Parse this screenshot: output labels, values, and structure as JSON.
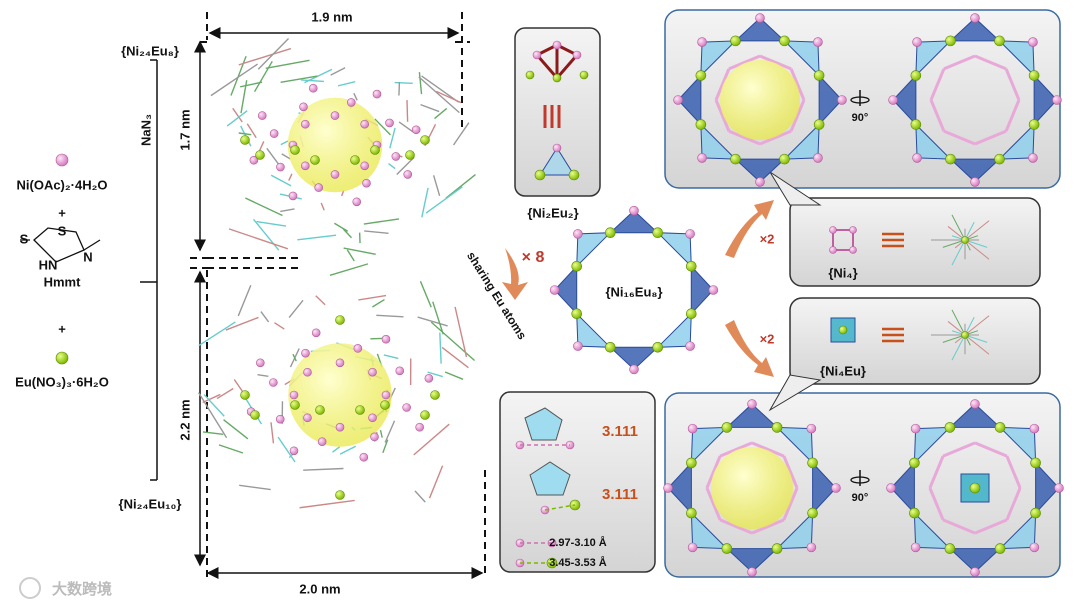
{
  "left": {
    "reactants": [
      "Ni(OAc)₂·4H₂O",
      "Hmmt",
      "Eu(NO₃)₃·6H₂O"
    ],
    "plus": [
      "+",
      "+"
    ],
    "hmmt_atoms": [
      "S",
      "S",
      "N",
      "HN"
    ],
    "reagent": "NaN₃"
  },
  "top_cluster": {
    "label": "{Ni₂₄Eu₈}",
    "width": "1.9 nm",
    "height": "1.7 nm"
  },
  "bottom_cluster": {
    "label": "{Ni₂₄Eu₁₀}",
    "width": "2.0 nm",
    "height": "2.2 nm"
  },
  "middle": {
    "unit": "{Ni₂Eu₂}",
    "multiplier": "× 8",
    "arrow_label": "sharing Eu atoms",
    "ring": "{Ni₁₆Eu₈}"
  },
  "right": {
    "top": {
      "multiplier": "×2",
      "unit": "{Ni₄}",
      "rotation": "90°"
    },
    "bottom": {
      "multiplier": "×2",
      "unit": "{Ni₄Eu}",
      "rotation": "90°"
    }
  },
  "distances": {
    "values": [
      3.111,
      3.111
    ],
    "legend": [
      "2.97-3.10 Å",
      "3.45-3.53 Å"
    ]
  },
  "watermark": "大数跨境"
}
